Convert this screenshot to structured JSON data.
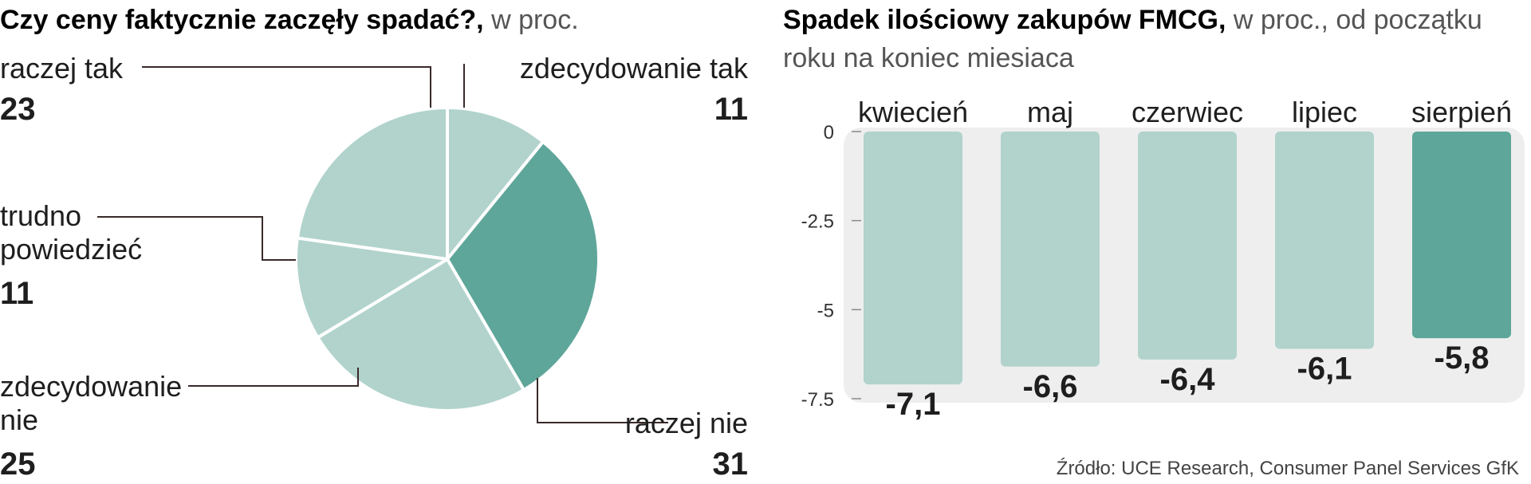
{
  "pie": {
    "title_bold": "Czy ceny faktycznie zaczęły spadać?,",
    "title_light": " w proc.",
    "colors": {
      "light": "#b1d3cc",
      "dark": "#5ea699",
      "edge": "#ffffff"
    },
    "slices": [
      {
        "label_lines": [
          "zdecydowanie tak"
        ],
        "value": "11",
        "dark": false
      },
      {
        "label_lines": [
          "raczej nie"
        ],
        "value": "31",
        "dark": true
      },
      {
        "label_lines": [
          "zdecydowanie",
          "nie"
        ],
        "value": "25",
        "dark": false
      },
      {
        "label_lines": [
          "trudno",
          " powiedzieć"
        ],
        "value": "11",
        "dark": false
      },
      {
        "label_lines": [
          "raczej tak"
        ],
        "value": "23",
        "dark": false
      }
    ]
  },
  "chart_data": {
    "type": "bar",
    "title": "Spadek ilościowy zakupów FMCG, w proc., od początku roku na koniec miesiaca",
    "title_bold": "Spadek ilościowy zakupów FMCG,",
    "title_light_line1": " w proc., od początku",
    "title_light_line2": "roku na koniec miesiaca",
    "categories": [
      "kwiecień",
      "maj",
      "czerwiec",
      "lipiec",
      "sierpień"
    ],
    "values": [
      -7.1,
      -6.6,
      -6.4,
      -6.1,
      -5.8
    ],
    "value_labels": [
      "-7,1",
      "-6,6",
      "-6,4",
      "-6,1",
      "-5,8"
    ],
    "highlight": [
      false,
      false,
      false,
      false,
      true
    ],
    "ylim": [
      -7.5,
      0
    ],
    "yticks": [
      0,
      -2.5,
      -5,
      -7.5
    ],
    "ytick_labels": [
      "0",
      "-2.5",
      "-5",
      "-7.5"
    ],
    "xlabel": "",
    "ylabel": "",
    "colors": {
      "bar": "#b1d3cc",
      "highlight": "#5ea699",
      "panel": "#eeeeee"
    }
  },
  "source": "Źródło: UCE Research, Consumer Panel Services GfK"
}
